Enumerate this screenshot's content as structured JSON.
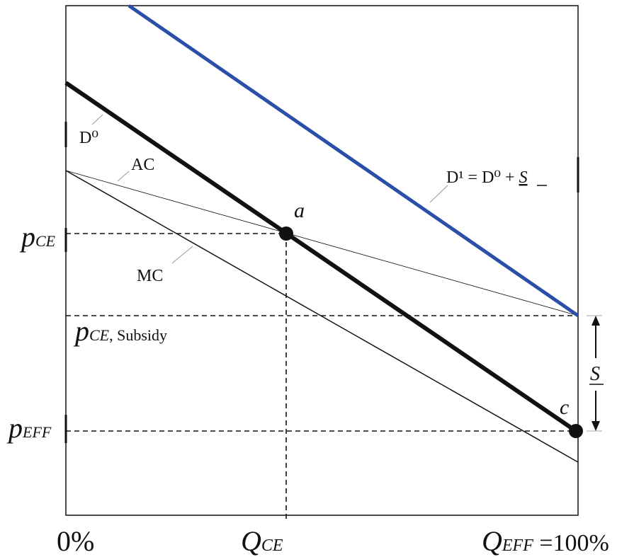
{
  "labels": {
    "d0": "D⁰",
    "ac": "AC",
    "d1": "D¹ = D⁰ + ",
    "d1_subsidy": "S",
    "mc": "MC",
    "point_a": "a",
    "point_c": "c",
    "p_ce": "p",
    "p_ce_sub": "CE",
    "p_ce_subsidy": "p",
    "p_ce_subsidy_sub": "CE",
    "p_ce_subsidy_tail": ", Subsidy",
    "p_eff": "p",
    "p_eff_sub": "EFF",
    "subsidy_bracket": "S",
    "x_zero": "0%",
    "x_qce": "Q",
    "x_qce_sub": "CE",
    "x_qeff": "Q",
    "x_qeff_sub": "EFF",
    "x_qeff_tail": " =100%"
  },
  "colors": {
    "d1_line": "#2b4ea8",
    "d0_line": "#111111",
    "axis": "#111111"
  }
}
